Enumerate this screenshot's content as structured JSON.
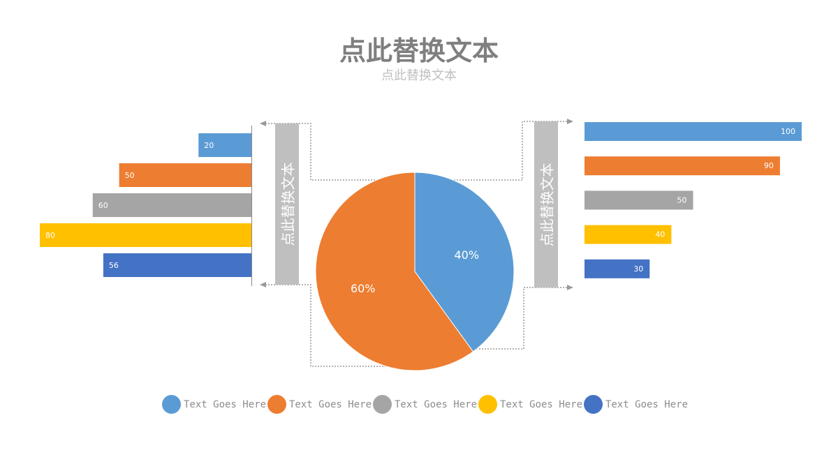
{
  "title": "点此替换文本",
  "subtitle": "点此替换文本",
  "side_labels": {
    "left": "点此替换文本",
    "right": "点此替换文本"
  },
  "colors": [
    "#5b9bd5",
    "#ed7d31",
    "#a5a5a5",
    "#ffc000",
    "#4472c4"
  ],
  "chart_data": [
    {
      "type": "bar",
      "orientation": "horizontal",
      "direction": "leftward",
      "values": [
        20,
        50,
        60,
        80,
        56
      ],
      "data_labels": [
        "20",
        "50",
        "60",
        "80",
        "56"
      ],
      "xlim": [
        0,
        80
      ]
    },
    {
      "type": "pie",
      "values": [
        40,
        60
      ],
      "data_labels": [
        "40%",
        "60%"
      ],
      "colors": [
        "#5b9bd5",
        "#ed7d31"
      ]
    },
    {
      "type": "bar",
      "orientation": "horizontal",
      "direction": "rightward",
      "values": [
        100,
        90,
        50,
        40,
        30
      ],
      "data_labels": [
        "100",
        "90",
        "50",
        "40",
        "30"
      ],
      "xlim": [
        0,
        100
      ]
    }
  ],
  "legend": {
    "placement": "bottom",
    "items": [
      "Text Goes Here",
      "Text Goes Here",
      "Text Goes Here",
      "Text Goes Here",
      "Text Goes Here"
    ]
  }
}
